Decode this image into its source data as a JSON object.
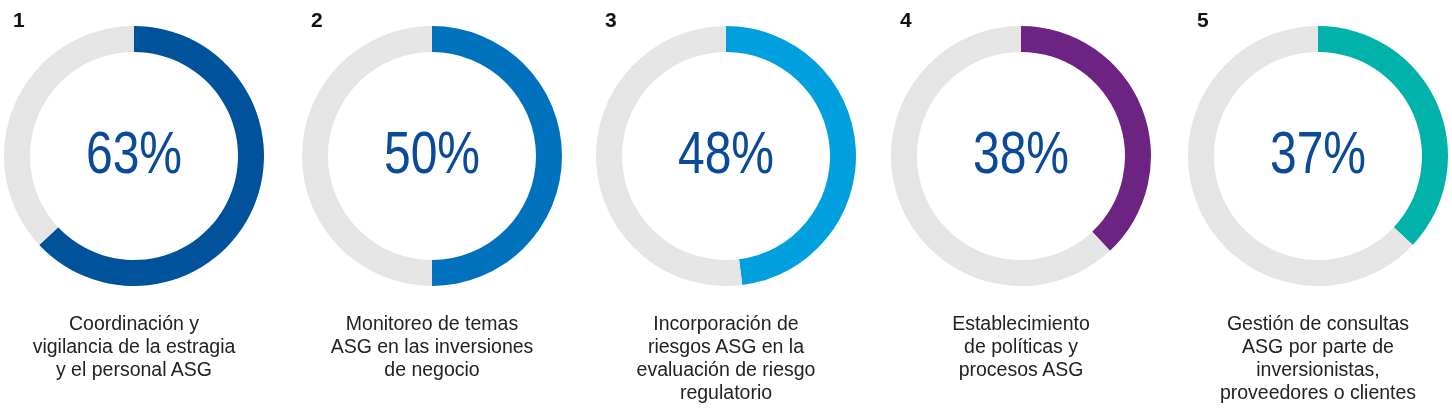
{
  "chart_data": [
    {
      "type": "donut",
      "title": "1",
      "categories": [
        null,
        null
      ],
      "values": [
        63,
        37
      ],
      "colors": [
        "#00539b",
        "#e5e5e5"
      ],
      "value_labels": [
        "63%",
        null
      ],
      "xlabel": "Coordinación y\nvigilancia de la estragia\ny el personal ASG",
      "legend": false
    },
    {
      "type": "donut",
      "title": "2",
      "categories": [
        null,
        null
      ],
      "values": [
        50,
        50
      ],
      "colors": [
        "#0071bc",
        "#e5e5e5"
      ],
      "value_labels": [
        "50%",
        null
      ],
      "xlabel": "Monitoreo de temas\nASG en las inversiones\nde negocio",
      "legend": false
    },
    {
      "type": "donut",
      "title": "3",
      "categories": [
        null,
        null
      ],
      "values": [
        48,
        52
      ],
      "colors": [
        "#00a0de",
        "#e5e5e5"
      ],
      "value_labels": [
        "48%",
        null
      ],
      "xlabel": "Incorporación de\nriesgos ASG en la\nevaluación de riesgo\nregulatorio",
      "legend": false
    },
    {
      "type": "donut",
      "title": "4",
      "categories": [
        null,
        null
      ],
      "values": [
        38,
        62
      ],
      "colors": [
        "#6d2382",
        "#e5e5e5"
      ],
      "value_labels": [
        "38%",
        null
      ],
      "xlabel": "Establecimiento\nde políticas y\nprocesos ASG",
      "legend": false
    },
    {
      "type": "donut",
      "title": "5",
      "categories": [
        null,
        null
      ],
      "values": [
        37,
        63
      ],
      "colors": [
        "#00b2a9",
        "#e5e5e5"
      ],
      "value_labels": [
        "37%",
        null
      ],
      "xlabel": "Gestión de consultas\nASG por parte de\ninversionistas,\nproveedores o clientes",
      "legend": false
    }
  ]
}
